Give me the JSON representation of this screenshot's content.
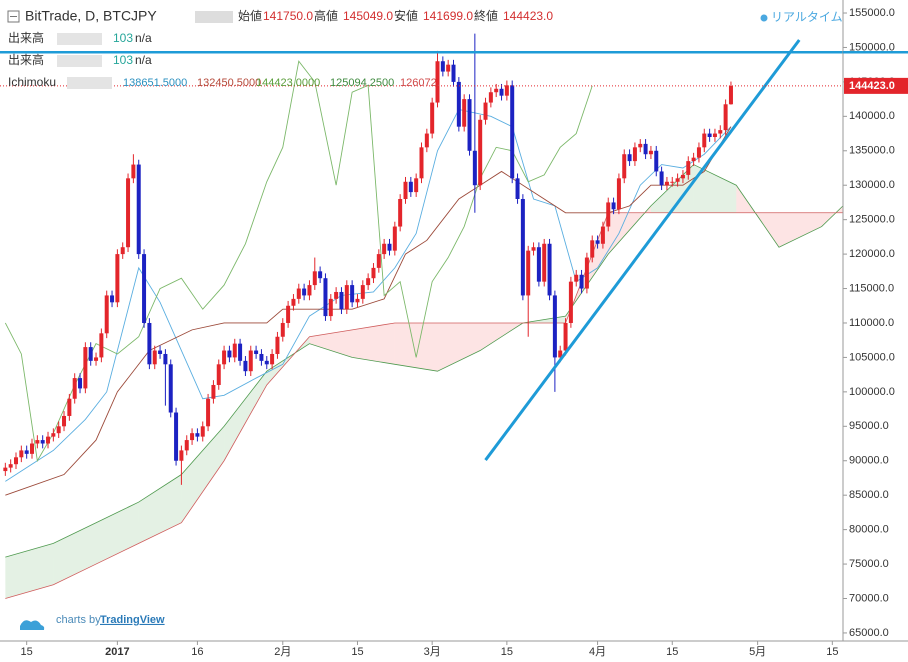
{
  "chart_data": {
    "type": "candlestick",
    "title": "BitTrade, D, BTCJPY",
    "ohlc_names": [
      "始値",
      "高値",
      "安値",
      "終値"
    ],
    "ohlc_labels": [
      "141750.0",
      "145049.0",
      "141699.0",
      "144423.0"
    ],
    "realtime_label": "リアルタイム",
    "volume_rows": [
      {
        "name": "出来高",
        "value": 103,
        "extra": "n/a"
      },
      {
        "name": "出来高",
        "value": 103,
        "extra": "n/a"
      }
    ],
    "indicator_name": "Ichimoku",
    "indicator_labels": [
      "138651.5000",
      "132450.5000",
      "144423.0000",
      "125094.2500",
      "126072."
    ],
    "indicator_colors": [
      "#2a8fbf",
      "#b5493a",
      "#5a9e3a",
      "#3f8a3f",
      "#d04a4a"
    ],
    "branding": [
      "charts by",
      "TradingView"
    ],
    "up_color": "#e3252b",
    "down_color": "#1c22c2",
    "x": [
      -21,
      -20,
      -19,
      -18,
      -17,
      -16,
      -15,
      -14,
      -13,
      -12,
      -11,
      -10,
      -9,
      -8,
      -7,
      -6,
      -5,
      -4,
      -3,
      -2,
      -1,
      0,
      1,
      2,
      3,
      4,
      5,
      6,
      7,
      8,
      9,
      10,
      11,
      12,
      13,
      14,
      15,
      16,
      17,
      18,
      19,
      20,
      21,
      22,
      23,
      24,
      25,
      26,
      27,
      28,
      29,
      30,
      31,
      32,
      33,
      34,
      35,
      36,
      37,
      38,
      39,
      40,
      41,
      42,
      43,
      44,
      45,
      46,
      47,
      48,
      49,
      50,
      51,
      52,
      53,
      54,
      55,
      56,
      57,
      58,
      59,
      60,
      61,
      62,
      63,
      64,
      65,
      66,
      67,
      68,
      69,
      70,
      71,
      72,
      73,
      74,
      75,
      76,
      77,
      78,
      79,
      80,
      81,
      82,
      83,
      84,
      85,
      86,
      87,
      88,
      89,
      90,
      91,
      92,
      93,
      94,
      95,
      96,
      97,
      98,
      99,
      100,
      101,
      102,
      103,
      104,
      105,
      106,
      107,
      108,
      109,
      110,
      111,
      112,
      113,
      114,
      115
    ],
    "open": [
      88500,
      89000,
      89500,
      90500,
      91500,
      91000,
      92500,
      93000,
      92500,
      93500,
      94000,
      95000,
      96500,
      99000,
      102000,
      100500,
      106500,
      104500,
      105000,
      108500,
      114000,
      113000,
      120000,
      121000,
      131000,
      133000,
      120000,
      110000,
      104000,
      106000,
      105500,
      104000,
      97000,
      90000,
      91500,
      93000,
      94000,
      93500,
      95000,
      99000,
      101000,
      104000,
      106000,
      105000,
      107000,
      104500,
      103000,
      106000,
      105500,
      104500,
      104000,
      105500,
      108000,
      110000,
      112500,
      113500,
      115000,
      114000,
      115500,
      117500,
      116500,
      111000,
      113500,
      114500,
      112000,
      115500,
      113000,
      113500,
      115500,
      116500,
      118000,
      120000,
      121500,
      120500,
      124000,
      128000,
      130500,
      129000,
      131000,
      135500,
      137500,
      142000,
      148000,
      146500,
      147500,
      145000,
      138500,
      142500,
      135000,
      130000,
      139500,
      142000,
      143500,
      144000,
      143000,
      144500,
      131000,
      128000,
      114000,
      120500,
      121000,
      116000,
      121500,
      114000,
      105000,
      106000,
      110000,
      116000,
      117000,
      115000,
      119500,
      122000,
      121500,
      124000,
      127500,
      126500,
      131000,
      134500,
      133500,
      135500,
      136000,
      134500,
      135000,
      132000,
      130000,
      130500,
      130500,
      131000,
      131500,
      133500,
      134000,
      135500,
      137500,
      137000,
      137500,
      138000,
      141750
    ],
    "high": [
      89700,
      90200,
      91200,
      92200,
      92200,
      93200,
      93700,
      93700,
      94200,
      94700,
      95700,
      97200,
      99700,
      102700,
      102700,
      107200,
      107200,
      105700,
      109200,
      114700,
      114700,
      120700,
      121700,
      131700,
      134500,
      133700,
      120700,
      110700,
      106700,
      106700,
      106200,
      104700,
      97700,
      92200,
      93700,
      94700,
      94700,
      95700,
      99700,
      101700,
      104700,
      106700,
      106700,
      107700,
      107700,
      105200,
      106700,
      106700,
      106200,
      105200,
      106200,
      108700,
      110700,
      113200,
      114200,
      115700,
      115700,
      116200,
      119500,
      118200,
      117200,
      114200,
      115200,
      115200,
      116200,
      116200,
      114200,
      116200,
      117200,
      118700,
      120700,
      122200,
      122200,
      124700,
      128700,
      131200,
      131200,
      131700,
      136200,
      138200,
      142700,
      149500,
      148700,
      148200,
      148200,
      145700,
      143200,
      143200,
      152000,
      140200,
      142700,
      144200,
      144700,
      144700,
      145200,
      145200,
      131700,
      128700,
      121200,
      121700,
      121700,
      122200,
      122200,
      114700,
      106700,
      110700,
      116700,
      117700,
      117700,
      120200,
      122700,
      122700,
      124700,
      128200,
      128200,
      131700,
      135200,
      135200,
      136200,
      136700,
      136700,
      135700,
      135700,
      132700,
      131200,
      131200,
      131700,
      132200,
      134200,
      134700,
      136200,
      138200,
      138200,
      138200,
      138700,
      142450,
      145049
    ],
    "low": [
      87800,
      88300,
      88800,
      89800,
      90300,
      90300,
      91800,
      91800,
      91800,
      92800,
      93300,
      94300,
      95800,
      98300,
      99800,
      99800,
      103800,
      103800,
      104300,
      107800,
      112300,
      112300,
      119300,
      120300,
      130300,
      119300,
      109300,
      103300,
      103300,
      104800,
      98000,
      96300,
      89300,
      86500,
      90800,
      92300,
      92800,
      92800,
      94300,
      98300,
      100300,
      103300,
      104300,
      104300,
      103800,
      102300,
      102300,
      104800,
      103800,
      103300,
      103300,
      104800,
      107300,
      109300,
      111800,
      112800,
      113300,
      113300,
      114800,
      115800,
      110300,
      110300,
      112800,
      111300,
      111300,
      112300,
      112300,
      112800,
      114800,
      115800,
      117300,
      119300,
      119800,
      119800,
      123300,
      127300,
      128300,
      128300,
      130300,
      134800,
      136800,
      141300,
      145800,
      145800,
      144300,
      137800,
      137800,
      134300,
      126000,
      129300,
      138800,
      141300,
      142800,
      142300,
      142300,
      130300,
      127300,
      113300,
      108000,
      119800,
      115300,
      115300,
      113300,
      100000,
      104300,
      105300,
      109300,
      115300,
      114300,
      114300,
      118800,
      120800,
      120800,
      123300,
      125800,
      125800,
      130300,
      132800,
      132800,
      134800,
      133800,
      133800,
      131300,
      129300,
      129300,
      129800,
      129800,
      130300,
      130800,
      132800,
      133300,
      134800,
      136300,
      136300,
      136800,
      137300,
      141699
    ],
    "close": [
      89000,
      89500,
      90500,
      91500,
      91000,
      92500,
      93000,
      92500,
      93500,
      94000,
      95000,
      96500,
      99000,
      102000,
      100500,
      106500,
      104500,
      105000,
      108500,
      114000,
      113000,
      120000,
      121000,
      131000,
      133000,
      120000,
      110000,
      104000,
      106000,
      105500,
      104000,
      97000,
      90000,
      91500,
      93000,
      94000,
      93500,
      95000,
      99000,
      101000,
      104000,
      106000,
      105000,
      107000,
      104500,
      103000,
      106000,
      105500,
      104500,
      104000,
      105500,
      108000,
      110000,
      112500,
      113500,
      115000,
      114000,
      115500,
      117500,
      116500,
      111000,
      113500,
      114500,
      112000,
      115500,
      113000,
      113500,
      115500,
      116500,
      118000,
      120000,
      121500,
      120500,
      124000,
      128000,
      130500,
      129000,
      131000,
      135500,
      137500,
      142000,
      148000,
      146500,
      147500,
      145000,
      138500,
      142500,
      135000,
      130000,
      139500,
      142000,
      143500,
      144000,
      143000,
      144500,
      131000,
      128000,
      114000,
      120500,
      121000,
      116000,
      121500,
      114000,
      105000,
      106000,
      110000,
      116000,
      117000,
      115000,
      119500,
      122000,
      121500,
      124000,
      127500,
      126500,
      131000,
      134500,
      133500,
      135500,
      136000,
      134500,
      135000,
      132000,
      130000,
      130500,
      130500,
      131000,
      131500,
      133500,
      134000,
      135500,
      137500,
      137000,
      137500,
      138000,
      141750,
      144423
    ],
    "lines": [
      {
        "color": "#5aaee0",
        "x": [
          -21,
          -12,
          -6,
          -2,
          2,
          4,
          8,
          12,
          16,
          20,
          26,
          31,
          36,
          42,
          48,
          52,
          56,
          60,
          64,
          70,
          74,
          78,
          82,
          86,
          90,
          94,
          98,
          102,
          106,
          110,
          115
        ],
        "values": [
          87000,
          91500,
          96000,
          100000,
          112000,
          118000,
          113000,
          106000,
          99000,
          99500,
          102000,
          104000,
          111000,
          114000,
          114500,
          118000,
          123000,
          135000,
          141000,
          140000,
          138500,
          128000,
          127000,
          116000,
          118000,
          123000,
          130000,
          133000,
          132500,
          134500,
          138500
        ]
      },
      {
        "color": "#9c4a3a",
        "x": [
          -21,
          -10,
          -4,
          0,
          6,
          14,
          20,
          28,
          31,
          36,
          44,
          50,
          54,
          58,
          64,
          68,
          72,
          78,
          84,
          88,
          92,
          96,
          100,
          106,
          110,
          115
        ],
        "values": [
          85000,
          88000,
          93000,
          100000,
          106000,
          109000,
          110000,
          110000,
          112000,
          112000,
          112000,
          113500,
          120000,
          122000,
          128000,
          130000,
          132000,
          129000,
          126000,
          126000,
          126000,
          127000,
          130000,
          130000,
          132000,
          138500
        ]
      },
      {
        "color": "#7cb86a",
        "x": [
          -21,
          -18,
          -15,
          -12,
          -8,
          -4,
          0,
          4,
          8,
          12,
          16,
          20,
          24,
          28,
          31,
          34,
          37,
          41,
          44,
          47,
          50,
          53,
          56,
          59,
          62,
          65,
          68,
          71,
          74,
          77,
          80,
          83,
          86,
          89
        ],
        "values": [
          110000,
          105500,
          90000,
          94000,
          101000,
          107000,
          105500,
          108000,
          115000,
          116500,
          112000,
          115500,
          121500,
          130500,
          135500,
          148000,
          145000,
          130000,
          143500,
          144500,
          114000,
          116000,
          105000,
          116000,
          119500,
          124000,
          131000,
          135500,
          135000,
          130500,
          131500,
          135500,
          137500,
          144423
        ]
      }
    ],
    "cloud": {
      "color_a": "#4f9a4f",
      "color_b": "#cf5c5c",
      "fill_a": "rgba(90,170,90,0.16)",
      "fill_b": "rgba(240,90,90,0.16)",
      "x": [
        -21,
        -12,
        -4,
        4,
        12,
        20,
        28,
        36,
        44,
        52,
        60,
        68,
        76,
        84,
        92,
        100,
        108,
        116,
        124,
        132,
        136
      ],
      "a": [
        76000,
        78000,
        81000,
        84000,
        88000,
        95000,
        103000,
        107000,
        105000,
        104000,
        103000,
        106000,
        110000,
        111000,
        120000,
        127000,
        133000,
        130000,
        121000,
        124000,
        127000
      ],
      "b": [
        70000,
        72000,
        75000,
        78000,
        81000,
        90000,
        101000,
        108000,
        109000,
        110000,
        110000,
        110000,
        110000,
        110000,
        126000,
        126000,
        126000,
        126000,
        126000,
        126000,
        126000
      ]
    },
    "drawings": {
      "color": "#1e9bd7",
      "horizontal": 149300,
      "trend_x": [
        69,
        127.8
      ],
      "trend_values": [
        90100,
        151080
      ]
    },
    "last_price": {
      "value": 144423,
      "label": "144423.0"
    },
    "xlim": [
      -22,
      136
    ],
    "xticks": [
      {
        "value": -17,
        "label": "15"
      },
      {
        "value": 0,
        "label": "2017"
      },
      {
        "value": 15,
        "label": "16"
      },
      {
        "value": 31,
        "label": "2月"
      },
      {
        "value": 45,
        "label": "15"
      },
      {
        "value": 59,
        "label": "3月"
      },
      {
        "value": 73,
        "label": "15"
      },
      {
        "value": 90,
        "label": "4月"
      },
      {
        "value": 104,
        "label": "15"
      },
      {
        "value": 120,
        "label": "5月"
      },
      {
        "value": 134,
        "label": "15"
      }
    ],
    "ylim": [
      63830,
      156890
    ],
    "yticks": [
      {
        "value": 65000,
        "label": "65000.0"
      },
      {
        "value": 70000,
        "label": "70000.0"
      },
      {
        "value": 75000,
        "label": "75000.0"
      },
      {
        "value": 80000,
        "label": "80000.0"
      },
      {
        "value": 85000,
        "label": "85000.0"
      },
      {
        "value": 90000,
        "label": "90000.0"
      },
      {
        "value": 95000,
        "label": "95000.0"
      },
      {
        "value": 100000,
        "label": "100000.0"
      },
      {
        "value": 105000,
        "label": "105000.0"
      },
      {
        "value": 110000,
        "label": "110000.0"
      },
      {
        "value": 115000,
        "label": "115000.0"
      },
      {
        "value": 120000,
        "label": "120000.0"
      },
      {
        "value": 125000,
        "label": "125000.0"
      },
      {
        "value": 130000,
        "label": "130000.0"
      },
      {
        "value": 135000,
        "label": "135000.0"
      },
      {
        "value": 140000,
        "label": "140000.0"
      },
      {
        "value": 145000,
        "label": "145000.0"
      },
      {
        "value": 150000,
        "label": "150000.0"
      },
      {
        "value": 155000,
        "label": "155000.0"
      }
    ],
    "grid": false
  }
}
